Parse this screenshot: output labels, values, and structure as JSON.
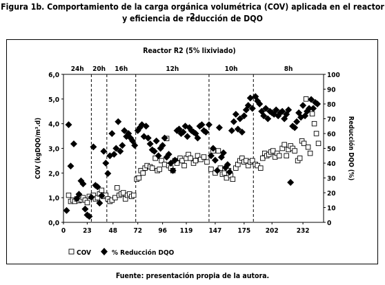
{
  "figure": {
    "title_line1": "Figura 1b. Comportamiento de la carga orgánica volumétrica (COV) aplicada en el reactor 2",
    "title_line2": "y eficiencia de reducción de DQO",
    "source": "Fuente: presentación propia de la autora."
  },
  "chart_data": {
    "type": "scatter",
    "title": "Reactor R2 (5% lixiviado)",
    "ylabel": "COV (kgDQO/m³.d)",
    "y2label": "Reducción DQO (%)",
    "xlim": [
      0,
      252
    ],
    "ylim": [
      0,
      6
    ],
    "y2lim": [
      0,
      100
    ],
    "x_ticks": [
      "0",
      "23",
      "48",
      "72",
      "96",
      "119",
      "147",
      "175",
      "202",
      "232"
    ],
    "x_tick_values": [
      0,
      23,
      48,
      72,
      96,
      119,
      147,
      175,
      202,
      232
    ],
    "y_ticks": [
      "0,0",
      "1,0",
      "2,0",
      "3,0",
      "4,0",
      "5,0",
      "6,0"
    ],
    "y_tick_values": [
      0,
      1,
      2,
      3,
      4,
      5,
      6
    ],
    "y2_ticks": [
      "0",
      "10",
      "20",
      "30",
      "40",
      "50",
      "60",
      "70",
      "80",
      "90",
      "100"
    ],
    "y2_tick_values": [
      0,
      10,
      20,
      30,
      40,
      50,
      60,
      70,
      80,
      90,
      100
    ],
    "grid": false,
    "legend_position": "bottom-left",
    "phases": [
      {
        "label": "24h",
        "x_start": 0,
        "x_end": 27
      },
      {
        "label": "20h",
        "x_start": 27,
        "x_end": 42
      },
      {
        "label": "16h",
        "x_start": 42,
        "x_end": 70
      },
      {
        "label": "12h",
        "x_start": 70,
        "x_end": 141
      },
      {
        "label": "10h",
        "x_start": 141,
        "x_end": 184
      },
      {
        "label": "8h",
        "x_start": 184,
        "x_end": 252
      }
    ],
    "phase_boundaries": [
      27,
      42,
      70,
      141,
      184
    ],
    "series": [
      {
        "name": "COV",
        "axis": "left",
        "marker": "open-square",
        "points": [
          [
            5,
            1.1
          ],
          [
            7,
            0.85
          ],
          [
            9,
            0.9
          ],
          [
            11,
            0.85
          ],
          [
            13,
            0.95
          ],
          [
            15,
            0.88
          ],
          [
            17,
            0.92
          ],
          [
            19,
            1.0
          ],
          [
            21,
            0.9
          ],
          [
            23,
            0.8
          ],
          [
            25,
            1.05
          ],
          [
            29,
            1.1
          ],
          [
            31,
            0.95
          ],
          [
            33,
            1.0
          ],
          [
            35,
            1.15
          ],
          [
            37,
            1.3
          ],
          [
            39,
            1.05
          ],
          [
            41,
            1.1
          ],
          [
            43,
            0.95
          ],
          [
            45,
            0.85
          ],
          [
            47,
            0.9
          ],
          [
            50,
            1.0
          ],
          [
            52,
            1.4
          ],
          [
            54,
            1.1
          ],
          [
            56,
            1.15
          ],
          [
            58,
            1.2
          ],
          [
            60,
            0.95
          ],
          [
            62,
            1.1
          ],
          [
            64,
            1.15
          ],
          [
            66,
            1.05
          ],
          [
            68,
            1.1
          ],
          [
            71,
            1.75
          ],
          [
            73,
            1.8
          ],
          [
            75,
            2.1
          ],
          [
            77,
            2.0
          ],
          [
            79,
            2.2
          ],
          [
            81,
            2.3
          ],
          [
            84,
            2.25
          ],
          [
            86,
            2.2
          ],
          [
            89,
            2.6
          ],
          [
            91,
            2.1
          ],
          [
            93,
            2.15
          ],
          [
            95,
            2.5
          ],
          [
            98,
            2.35
          ],
          [
            100,
            3.4
          ],
          [
            102,
            2.3
          ],
          [
            104,
            2.2
          ],
          [
            106,
            2.1
          ],
          [
            108,
            2.5
          ],
          [
            110,
            2.4
          ],
          [
            113,
            2.6
          ],
          [
            115,
            2.5
          ],
          [
            117,
            2.3
          ],
          [
            119,
            2.6
          ],
          [
            121,
            2.75
          ],
          [
            123,
            2.6
          ],
          [
            126,
            2.4
          ],
          [
            128,
            2.5
          ],
          [
            130,
            2.7
          ],
          [
            133,
            2.55
          ],
          [
            136,
            2.65
          ],
          [
            139,
            2.45
          ],
          [
            143,
            2.15
          ],
          [
            145,
            2.9
          ],
          [
            147,
            2.0
          ],
          [
            150,
            2.9
          ],
          [
            152,
            2.2
          ],
          [
            154,
            1.95
          ],
          [
            156,
            2.0
          ],
          [
            158,
            1.8
          ],
          [
            160,
            2.1
          ],
          [
            162,
            1.9
          ],
          [
            164,
            1.75
          ],
          [
            167,
            2.2
          ],
          [
            169,
            2.35
          ],
          [
            171,
            2.5
          ],
          [
            173,
            2.6
          ],
          [
            175,
            2.45
          ],
          [
            177,
            2.5
          ],
          [
            179,
            2.3
          ],
          [
            181,
            2.45
          ],
          [
            183,
            2.5
          ],
          [
            186,
            2.35
          ],
          [
            188,
            2.3
          ],
          [
            191,
            2.2
          ],
          [
            193,
            2.6
          ],
          [
            195,
            2.8
          ],
          [
            197,
            2.7
          ],
          [
            199,
            2.75
          ],
          [
            201,
            2.85
          ],
          [
            203,
            2.9
          ],
          [
            205,
            2.65
          ],
          [
            207,
            2.8
          ],
          [
            209,
            2.7
          ],
          [
            212,
            3.0
          ],
          [
            214,
            3.15
          ],
          [
            216,
            2.7
          ],
          [
            218,
            2.95
          ],
          [
            220,
            3.1
          ],
          [
            222,
            3.0
          ],
          [
            224,
            2.9
          ],
          [
            227,
            2.5
          ],
          [
            229,
            2.6
          ],
          [
            231,
            3.3
          ],
          [
            233,
            3.2
          ],
          [
            235,
            5.0
          ],
          [
            237,
            3.05
          ],
          [
            239,
            2.8
          ],
          [
            241,
            4.4
          ],
          [
            243,
            4.0
          ],
          [
            245,
            3.6
          ],
          [
            247,
            3.2
          ]
        ]
      },
      {
        "name": "% Reducción DQO",
        "axis": "right",
        "marker": "filled-diamond",
        "points": [
          [
            3,
            8
          ],
          [
            5,
            66
          ],
          [
            7,
            38
          ],
          [
            10,
            53
          ],
          [
            13,
            16
          ],
          [
            15,
            19
          ],
          [
            17,
            28
          ],
          [
            19,
            26
          ],
          [
            21,
            9
          ],
          [
            23,
            5
          ],
          [
            25,
            4
          ],
          [
            27,
            17
          ],
          [
            29,
            51
          ],
          [
            31,
            25
          ],
          [
            33,
            24
          ],
          [
            35,
            13
          ],
          [
            37,
            18
          ],
          [
            39,
            48
          ],
          [
            41,
            40
          ],
          [
            43,
            33
          ],
          [
            45,
            45
          ],
          [
            47,
            60
          ],
          [
            49,
            46
          ],
          [
            51,
            50
          ],
          [
            53,
            68
          ],
          [
            55,
            48
          ],
          [
            57,
            52
          ],
          [
            59,
            62
          ],
          [
            61,
            58
          ],
          [
            63,
            60
          ],
          [
            65,
            57
          ],
          [
            67,
            55
          ],
          [
            69,
            52
          ],
          [
            72,
            62
          ],
          [
            74,
            64
          ],
          [
            76,
            66
          ],
          [
            78,
            58
          ],
          [
            80,
            65
          ],
          [
            82,
            57
          ],
          [
            84,
            53
          ],
          [
            86,
            49
          ],
          [
            88,
            48
          ],
          [
            90,
            55
          ],
          [
            92,
            45
          ],
          [
            94,
            50
          ],
          [
            96,
            52
          ],
          [
            98,
            57
          ],
          [
            100,
            44
          ],
          [
            102,
            46
          ],
          [
            104,
            40
          ],
          [
            106,
            35
          ],
          [
            108,
            42
          ],
          [
            110,
            62
          ],
          [
            112,
            63
          ],
          [
            114,
            60
          ],
          [
            116,
            61
          ],
          [
            118,
            65
          ],
          [
            120,
            58
          ],
          [
            122,
            64
          ],
          [
            124,
            62
          ],
          [
            126,
            61
          ],
          [
            128,
            60
          ],
          [
            130,
            57
          ],
          [
            132,
            65
          ],
          [
            134,
            66
          ],
          [
            136,
            62
          ],
          [
            138,
            61
          ],
          [
            141,
            66
          ],
          [
            143,
            45
          ],
          [
            145,
            50
          ],
          [
            147,
            42
          ],
          [
            149,
            35
          ],
          [
            151,
            64
          ],
          [
            153,
            44
          ],
          [
            155,
            47
          ],
          [
            157,
            37
          ],
          [
            159,
            39
          ],
          [
            161,
            34
          ],
          [
            163,
            62
          ],
          [
            165,
            68
          ],
          [
            167,
            73
          ],
          [
            169,
            63
          ],
          [
            171,
            70
          ],
          [
            173,
            61
          ],
          [
            175,
            72
          ],
          [
            177,
            76
          ],
          [
            179,
            79
          ],
          [
            181,
            84
          ],
          [
            183,
            77
          ],
          [
            186,
            85
          ],
          [
            188,
            82
          ],
          [
            190,
            80
          ],
          [
            192,
            75
          ],
          [
            194,
            72
          ],
          [
            196,
            77
          ],
          [
            198,
            70
          ],
          [
            200,
            75
          ],
          [
            202,
            74
          ],
          [
            204,
            73
          ],
          [
            206,
            76
          ],
          [
            208,
            72
          ],
          [
            210,
            74
          ],
          [
            212,
            75
          ],
          [
            214,
            70
          ],
          [
            216,
            73
          ],
          [
            218,
            76
          ],
          [
            220,
            27
          ],
          [
            222,
            65
          ],
          [
            224,
            64
          ],
          [
            226,
            68
          ],
          [
            228,
            74
          ],
          [
            230,
            71
          ],
          [
            232,
            79
          ],
          [
            234,
            72
          ],
          [
            236,
            75
          ],
          [
            238,
            77
          ],
          [
            240,
            83
          ],
          [
            242,
            77
          ],
          [
            244,
            81
          ],
          [
            246,
            80
          ]
        ]
      }
    ]
  }
}
